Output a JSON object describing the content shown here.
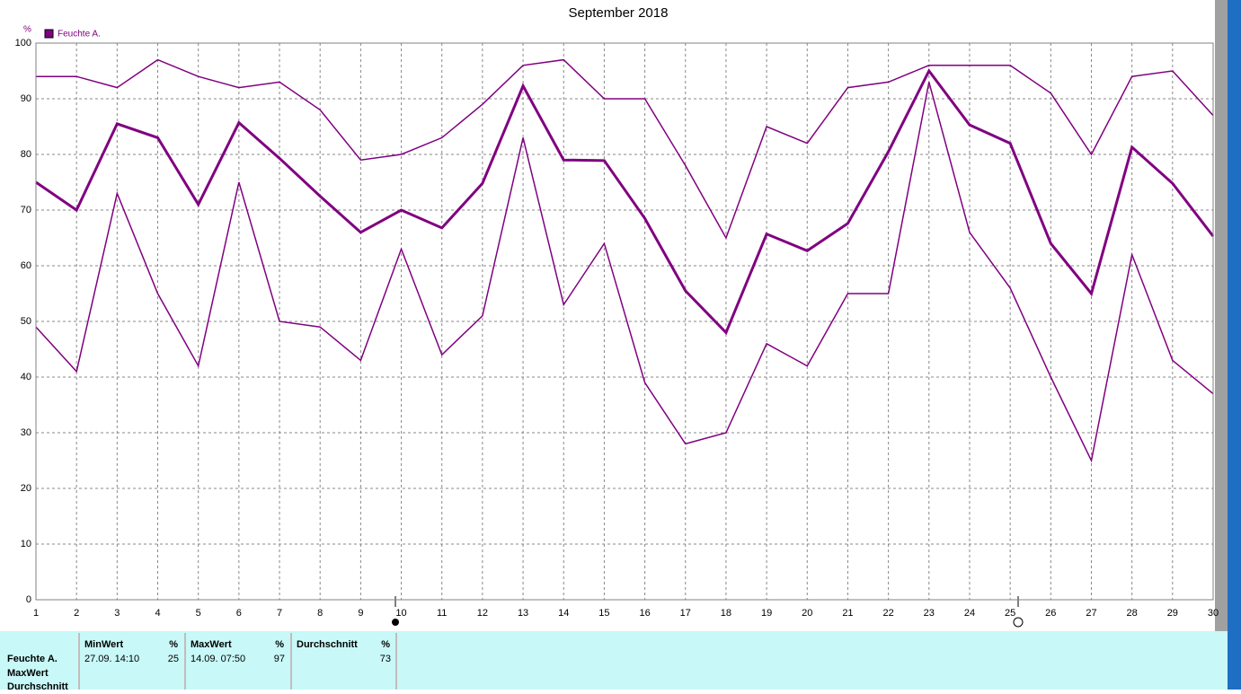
{
  "chart_data": {
    "type": "line",
    "title": "September 2018",
    "y_unit": "%",
    "legend": "Feuchte A.",
    "x": [
      1,
      2,
      3,
      4,
      5,
      6,
      7,
      8,
      9,
      10,
      11,
      12,
      13,
      14,
      15,
      16,
      17,
      18,
      19,
      20,
      21,
      22,
      23,
      24,
      25,
      26,
      27,
      28,
      29,
      30
    ],
    "xlim": [
      1,
      30
    ],
    "xticks": [
      1,
      2,
      3,
      4,
      5,
      6,
      7,
      8,
      9,
      10,
      11,
      12,
      13,
      14,
      15,
      16,
      17,
      18,
      19,
      20,
      21,
      22,
      23,
      24,
      25,
      26,
      27,
      28,
      29,
      30
    ],
    "ylim": [
      0,
      100
    ],
    "yticks": [
      0,
      10,
      20,
      30,
      40,
      50,
      60,
      70,
      80,
      90,
      100
    ],
    "grid": true,
    "series": [
      {
        "color": "#800080",
        "width": 1.5,
        "values": [
          94,
          94,
          92,
          97,
          94,
          92,
          93,
          88,
          79,
          80,
          83,
          89,
          96,
          97,
          90,
          90,
          78,
          65,
          85,
          82,
          92,
          93,
          96,
          96,
          96,
          91,
          80,
          94,
          95,
          87
        ]
      },
      {
        "color": "#800080",
        "width": 3,
        "values": [
          75,
          70,
          85.5,
          83,
          71,
          85.7,
          79.3,
          72.5,
          66,
          70,
          66.8,
          74.8,
          92.3,
          79,
          78.9,
          68.5,
          55.5,
          48,
          65.7,
          62.7,
          67.6,
          80.5,
          95,
          85.3,
          82,
          64,
          55,
          81.3,
          74.8,
          65.3
        ]
      },
      {
        "color": "#800080",
        "width": 1.5,
        "values": [
          49,
          41,
          73,
          55,
          42,
          75,
          50,
          49,
          43,
          63,
          44,
          51,
          83,
          53,
          64,
          39,
          28,
          30,
          46,
          42,
          55,
          55,
          93,
          66,
          56,
          40,
          25,
          62,
          43,
          37
        ]
      }
    ]
  },
  "panel": {
    "row_labels": [
      "Feuchte A.",
      "MaxWert",
      "Durchschnitt"
    ],
    "columns": [
      {
        "title": "MinWert",
        "unit": "%",
        "time": "27.09.  14:10",
        "value": 25
      },
      {
        "title": "MaxWert",
        "unit": "%",
        "time": "14.09.  07:50",
        "value": 97
      },
      {
        "title": "Durchschnitt",
        "unit": "%",
        "value": 73
      }
    ]
  }
}
